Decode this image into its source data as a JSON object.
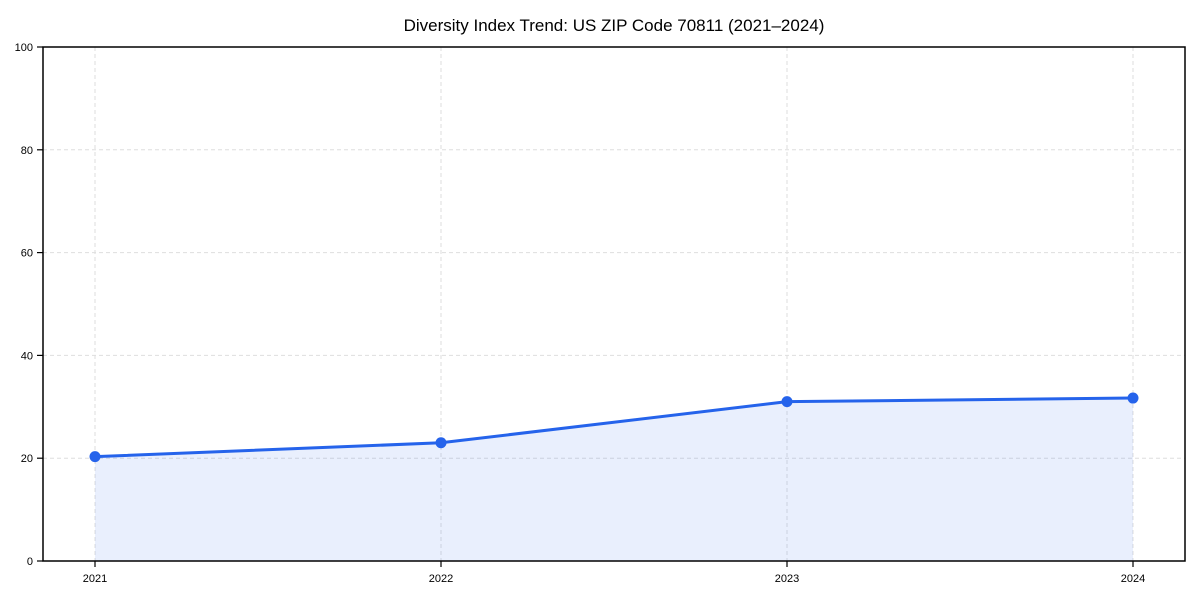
{
  "chart_data": {
    "type": "line",
    "title": "Diversity Index Trend: US ZIP Code 70811 (2021–2024)",
    "x": [
      "2021",
      "2022",
      "2023",
      "2024"
    ],
    "series": [
      {
        "name": "Diversity Index",
        "values": [
          20.3,
          23,
          31,
          31.7
        ]
      }
    ],
    "xlabel": "",
    "ylabel": "",
    "ylim": [
      0,
      100
    ],
    "yticks": [
      0,
      20,
      40,
      60,
      80,
      100
    ],
    "grid": "dashed-both-axes",
    "legend": "none",
    "marker": "circle",
    "area_fill": true,
    "colors": {
      "line": "#2563eb",
      "marker": "#2563eb",
      "area": "#2563eb",
      "area_opacity": 0.1,
      "grid": "#dedede",
      "axis": "#000000",
      "text": "#000000"
    }
  }
}
